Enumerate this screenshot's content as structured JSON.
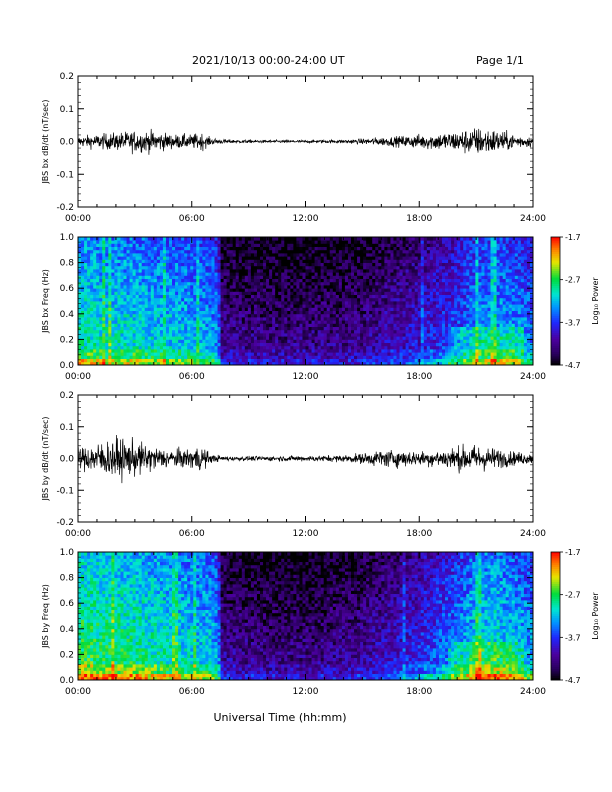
{
  "header": {
    "title": "2021/10/13  00:00-24:00 UT",
    "page": "Page 1/1"
  },
  "xlabel": "Universal Time (hh:mm)",
  "xticks": [
    "00:00",
    "06:00",
    "12:00",
    "18:00",
    "24:00"
  ],
  "colorbar": {
    "label": "Log₁₀ Power",
    "ticks": [
      "-1.7",
      "-2.7",
      "-3.7",
      "-4.7"
    ],
    "range": [
      -4.7,
      -1.7
    ]
  },
  "chart_data": [
    {
      "type": "line",
      "ylabel": "JBS bx dB/dt (nT/sec)",
      "xrange_hours": [
        0,
        24
      ],
      "ylim": [
        -0.2,
        0.2
      ],
      "yticks": [
        "0.2",
        "0.1",
        "0.0",
        "-0.1",
        "-0.2"
      ],
      "envelope": {
        "hour": [
          0,
          1,
          2,
          3,
          4,
          5,
          6,
          6.5,
          7,
          8,
          10,
          12,
          14,
          15,
          16,
          17,
          18,
          19,
          20,
          21,
          22,
          23,
          24
        ],
        "amplitude": [
          0.015,
          0.02,
          0.025,
          0.03,
          0.03,
          0.02,
          0.02,
          0.025,
          0.01,
          0.005,
          0.004,
          0.004,
          0.005,
          0.008,
          0.012,
          0.015,
          0.02,
          0.025,
          0.03,
          0.04,
          0.035,
          0.02,
          0.015
        ]
      }
    },
    {
      "type": "heatmap",
      "ylabel": "JBS bx Freq (Hz)",
      "xrange_hours": [
        0,
        24
      ],
      "ylim": [
        0.0,
        1.0
      ],
      "yticks": [
        "1.0",
        "0.8",
        "0.6",
        "0.4",
        "0.2",
        "0.0"
      ],
      "zlabel": "Log₁₀ Power",
      "zlim": [
        -4.7,
        -1.7
      ],
      "activity": {
        "hour": [
          0,
          1,
          3,
          5,
          7,
          7.4,
          7.6,
          10,
          12,
          15,
          18,
          20,
          21,
          22,
          23,
          24
        ],
        "level": [
          0.62,
          0.6,
          0.58,
          0.55,
          0.5,
          0.45,
          0.2,
          0.18,
          0.18,
          0.2,
          0.3,
          0.4,
          0.5,
          0.52,
          0.5,
          0.45
        ]
      }
    },
    {
      "type": "line",
      "ylabel": "JBS by dB/dt (nT/sec)",
      "xrange_hours": [
        0,
        24
      ],
      "ylim": [
        -0.2,
        0.2
      ],
      "yticks": [
        "0.2",
        "0.1",
        "0.0",
        "-0.1",
        "-0.2"
      ],
      "envelope": {
        "hour": [
          0,
          1,
          2,
          3,
          4,
          5,
          6,
          6.5,
          7,
          8,
          10,
          12,
          14,
          15,
          16,
          17,
          18,
          19,
          20,
          21,
          22,
          23,
          24
        ],
        "amplitude": [
          0.03,
          0.045,
          0.06,
          0.05,
          0.035,
          0.025,
          0.03,
          0.04,
          0.012,
          0.006,
          0.007,
          0.008,
          0.01,
          0.015,
          0.025,
          0.025,
          0.02,
          0.025,
          0.035,
          0.04,
          0.03,
          0.02,
          0.015
        ]
      }
    },
    {
      "type": "heatmap",
      "ylabel": "JBS by Freq (Hz)",
      "xrange_hours": [
        0,
        24
      ],
      "ylim": [
        0.0,
        1.0
      ],
      "yticks": [
        "1.0",
        "0.8",
        "0.6",
        "0.4",
        "0.2",
        "0.0"
      ],
      "zlabel": "Log₁₀ Power",
      "zlim": [
        -4.7,
        -1.7
      ],
      "activity": {
        "hour": [
          0,
          1,
          3,
          5,
          7,
          7.4,
          7.6,
          10,
          12,
          15,
          18,
          20,
          21,
          22,
          23,
          24
        ],
        "level": [
          0.7,
          0.68,
          0.65,
          0.6,
          0.55,
          0.5,
          0.22,
          0.18,
          0.18,
          0.22,
          0.35,
          0.48,
          0.58,
          0.6,
          0.55,
          0.5
        ]
      }
    }
  ]
}
